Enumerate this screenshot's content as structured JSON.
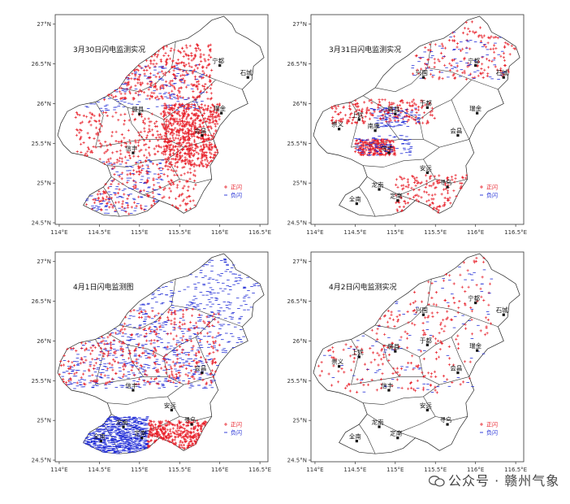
{
  "chart_data": [
    {
      "type": "scatter",
      "title": "3月30日闪电监测实况",
      "xticks": [
        "114°E",
        "114.5°E",
        "115°E",
        "115.5°E",
        "116°E",
        "116.5°E"
      ],
      "yticks": [
        "27°N",
        "26.5°N",
        "26°N",
        "25.5°N",
        "25°N",
        "24.5°N"
      ],
      "xlim": [
        113.95,
        116.6
      ],
      "ylim": [
        24.48,
        27.12
      ],
      "legend": [
        "正闪",
        "负闪"
      ],
      "cities": [
        "宁都",
        "石城",
        "瑞金",
        "会昌",
        "信丰",
        "赣县"
      ],
      "series": [
        {
          "name": "正闪",
          "color": "#e8202a",
          "density": "very high",
          "regions": [
            [
              114.0,
              26.05,
              115.9,
              26.75
            ],
            [
              114.2,
              24.5,
              115.7,
              25.9
            ],
            [
              115.3,
              25.2,
              116.0,
              26.0
            ]
          ]
        },
        {
          "name": "负闪",
          "color": "#1f2bd6",
          "density": "medium",
          "regions": [
            [
              114.1,
              24.6,
              115.3,
              25.3
            ],
            [
              114.3,
              25.9,
              115.8,
              26.5
            ]
          ]
        }
      ]
    },
    {
      "type": "scatter",
      "title": "3月31日闪电监测实况",
      "xticks": [
        "114°E",
        "114.5°E",
        "115°E",
        "115.5°E",
        "116°E",
        "116.5°E"
      ],
      "yticks": [
        "27°N",
        "26.5°N",
        "26°N",
        "25.5°N",
        "25°N",
        "24.5°N"
      ],
      "xlim": [
        113.95,
        116.6
      ],
      "ylim": [
        24.48,
        27.12
      ],
      "legend": [
        "正闪",
        "负闪"
      ],
      "cities": [
        "兴国",
        "宁都",
        "石城",
        "上犹",
        "赣县",
        "于都",
        "瑞金",
        "崇义",
        "南康",
        "会昌",
        "信丰",
        "安远",
        "龙南",
        "寻乌",
        "全南",
        "定南"
      ],
      "series": [
        {
          "name": "正闪",
          "color": "#e8202a",
          "density": "high",
          "regions": [
            [
              115.2,
              26.3,
              116.5,
              27.1
            ],
            [
              114.2,
              25.75,
              115.5,
              26.05
            ],
            [
              115.0,
              24.6,
              116.0,
              25.1
            ],
            [
              114.5,
              25.35,
              115.0,
              25.55
            ]
          ]
        },
        {
          "name": "负闪",
          "color": "#1f2bd6",
          "density": "medium",
          "regions": [
            [
              115.2,
              26.3,
              116.4,
              26.9
            ],
            [
              114.5,
              25.35,
              115.2,
              25.6
            ],
            [
              114.7,
              25.7,
              115.3,
              25.95
            ]
          ]
        }
      ]
    },
    {
      "type": "scatter",
      "title": "4月1日闪电监测图",
      "xticks": [
        "114°E",
        "114.5°E",
        "115°E",
        "115.5°E",
        "116°E",
        "116.5°E"
      ],
      "yticks": [
        "27°N",
        "26.5°N",
        "26°N",
        "25.5°N",
        "25°N",
        "24.5°N"
      ],
      "xlim": [
        113.95,
        116.6
      ],
      "ylim": [
        24.48,
        27.12
      ],
      "legend": [
        "正闪",
        "负闪"
      ],
      "cities": [
        "会昌",
        "信丰",
        "安远",
        "龙南",
        "寻乌",
        "定南",
        "全南"
      ],
      "series": [
        {
          "name": "负闪",
          "color": "#1f2bd6",
          "density": "very high",
          "regions": [
            [
              114.0,
              25.4,
              116.5,
              27.05
            ],
            [
              114.1,
              24.55,
              115.1,
              25.05
            ]
          ]
        },
        {
          "name": "正闪",
          "color": "#e8202a",
          "density": "high",
          "regions": [
            [
              114.0,
              25.45,
              116.0,
              26.4
            ],
            [
              115.1,
              24.6,
              115.9,
              25.0
            ]
          ]
        }
      ]
    },
    {
      "type": "scatter",
      "title": "4月2日闪电监测实况",
      "xticks": [
        "114°E",
        "114.5°E",
        "115°E",
        "115.5°E",
        "116°E",
        "116.5°E"
      ],
      "yticks": [
        "27°N",
        "26.5°N",
        "26°N",
        "25.5°N",
        "25°N",
        "24.5°N"
      ],
      "xlim": [
        113.95,
        116.6
      ],
      "ylim": [
        24.48,
        27.12
      ],
      "legend": [
        "正闪",
        "负闪"
      ],
      "cities": [
        "宁都",
        "兴国",
        "石城",
        "上犹",
        "于都",
        "赣县",
        "崇义",
        "瑞金",
        "会昌",
        "信丰",
        "安远",
        "龙南",
        "寻乌",
        "全南",
        "定南"
      ],
      "series": [
        {
          "name": "正闪",
          "color": "#e8202a",
          "density": "medium",
          "regions": [
            [
              114.0,
              25.35,
              116.2,
              27.1
            ]
          ]
        },
        {
          "name": "负闪",
          "color": "#1f2bd6",
          "density": "low",
          "regions": [
            [
              114.0,
              25.35,
              116.2,
              27.1
            ]
          ]
        }
      ]
    }
  ],
  "watermark": "公众号 · 赣州气象",
  "city_coords": {
    "宁都": [
      116.0,
      26.48
    ],
    "石城": [
      116.35,
      26.33
    ],
    "瑞金": [
      116.02,
      25.88
    ],
    "会昌": [
      115.78,
      25.6
    ],
    "信丰": [
      114.92,
      25.38
    ],
    "赣县": [
      115.0,
      25.87
    ],
    "兴国": [
      115.35,
      26.33
    ],
    "上犹": [
      114.55,
      25.8
    ],
    "于都": [
      115.4,
      25.95
    ],
    "崇义": [
      114.3,
      25.68
    ],
    "南康": [
      114.75,
      25.66
    ],
    "安远": [
      115.4,
      25.13
    ],
    "龙南": [
      114.8,
      24.92
    ],
    "寻乌": [
      115.65,
      24.95
    ],
    "全南": [
      114.52,
      24.74
    ],
    "定南": [
      115.03,
      24.78
    ]
  },
  "colors": {
    "positive": "#e8202a",
    "negative": "#1f2bd6"
  }
}
